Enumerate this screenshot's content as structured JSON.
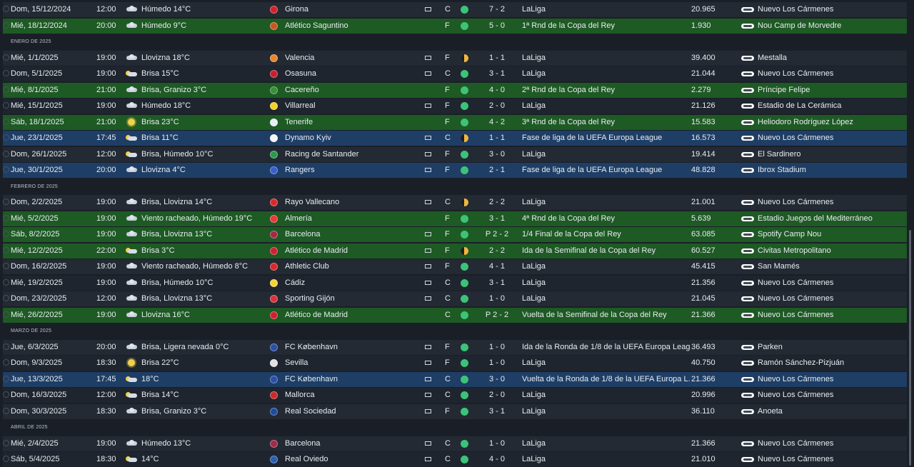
{
  "columns": {
    "result_icon": "result-dot",
    "tv_icon": "tv-icon",
    "stadium_icon": "stadium-icon"
  },
  "colors": {
    "cup_row": "#1e5a24",
    "europe_row": "#1e3e66",
    "normal_row": "#232a34",
    "win": "#3cc378",
    "draw": "#f2b53d"
  },
  "entries": [
    {
      "kind": "match",
      "date": "Dom, 15/12/2024",
      "time": "12:00",
      "wicon": "cloud",
      "weather": "Húmedo 14°C",
      "crest": "#d1232a",
      "opponent": "Girona",
      "tv": true,
      "ha": "C",
      "result": "W",
      "score": "7 - 2",
      "competition": "LaLiga",
      "attendance": "20.965",
      "stadium": "Nuevo Los Cármenes",
      "style": "normal"
    },
    {
      "kind": "match",
      "date": "Mié, 18/12/2024",
      "time": "20:00",
      "wicon": "cloud",
      "weather": "Húmedo 9°C",
      "crest": "#c8571f",
      "opponent": "Atlético Saguntino",
      "tv": false,
      "ha": "F",
      "result": "W",
      "score": "5 - 0",
      "competition": "1ª Rnd de la Copa del Rey",
      "attendance": "1.930",
      "stadium": "Nou Camp de Morvedre",
      "style": "cup"
    },
    {
      "kind": "month",
      "label": "ENERO DE 2025"
    },
    {
      "kind": "match",
      "date": "Mié, 1/1/2025",
      "time": "19:00",
      "wicon": "cloud",
      "weather": "Llovizna 18°C",
      "crest": "#e8852a",
      "opponent": "Valencia",
      "tv": true,
      "ha": "F",
      "result": "D",
      "score": "1 - 1",
      "competition": "LaLiga",
      "attendance": "39.400",
      "stadium": "Mestalla",
      "style": "normal"
    },
    {
      "kind": "match",
      "date": "Dom, 5/1/2025",
      "time": "19:00",
      "wicon": "suncloud",
      "weather": "Brisa 15°C",
      "crest": "#c4202f",
      "opponent": "Osasuna",
      "tv": true,
      "ha": "C",
      "result": "W",
      "score": "3 - 1",
      "competition": "LaLiga",
      "attendance": "21.044",
      "stadium": "Nuevo Los Cármenes",
      "style": "normal"
    },
    {
      "kind": "match",
      "date": "Mié, 8/1/2025",
      "time": "21:00",
      "wicon": "cloud",
      "weather": "Brisa, Granizo 3°C",
      "crest": "#3b8e3b",
      "opponent": "Cacereño",
      "tv": false,
      "ha": "F",
      "result": "W",
      "score": "4 - 0",
      "competition": "2ª Rnd de la Copa del Rey",
      "attendance": "2.279",
      "stadium": "Príncipe Felipe",
      "style": "cup"
    },
    {
      "kind": "match",
      "date": "Mié, 15/1/2025",
      "time": "19:00",
      "wicon": "cloud",
      "weather": "Húmedo 18°C",
      "crest": "#f2d028",
      "opponent": "Villarreal",
      "tv": true,
      "ha": "F",
      "result": "W",
      "score": "2 - 0",
      "competition": "LaLiga",
      "attendance": "21.126",
      "stadium": "Estadio de La Cerámica",
      "style": "normal"
    },
    {
      "kind": "match",
      "date": "Sáb, 18/1/2025",
      "time": "21:00",
      "wicon": "sun",
      "weather": "Brisa 23°C",
      "crest": "#e6eef5",
      "opponent": "Tenerife",
      "tv": false,
      "ha": "F",
      "result": "W",
      "score": "4 - 2",
      "competition": "3ª Rnd de la Copa del Rey",
      "attendance": "15.583",
      "stadium": "Heliodoro Rodríguez López",
      "style": "cup"
    },
    {
      "kind": "match",
      "date": "Jue, 23/1/2025",
      "time": "17:45",
      "wicon": "suncloud",
      "weather": "Brisa 11°C",
      "crest": "#f5f5f5",
      "opponent": "Dynamo Kyiv",
      "tv": true,
      "ha": "C",
      "result": "D",
      "score": "1 - 1",
      "competition": "Fase de liga de la UEFA Europa League",
      "attendance": "16.573",
      "stadium": "Nuevo Los Cármenes",
      "style": "euro"
    },
    {
      "kind": "match",
      "date": "Dom, 26/1/2025",
      "time": "12:00",
      "wicon": "suncloud",
      "weather": "Brisa, Húmedo 10°C",
      "crest": "#2a9a4a",
      "opponent": "Racing de Santander",
      "tv": true,
      "ha": "F",
      "result": "W",
      "score": "3 - 0",
      "competition": "LaLiga",
      "attendance": "19.414",
      "stadium": "El Sardinero",
      "style": "normal"
    },
    {
      "kind": "match",
      "date": "Jue, 30/1/2025",
      "time": "20:00",
      "wicon": "cloud",
      "weather": "Llovizna 4°C",
      "crest": "#3a5fcd",
      "opponent": "Rangers",
      "tv": true,
      "ha": "F",
      "result": "W",
      "score": "2 - 1",
      "competition": "Fase de liga de la UEFA Europa League",
      "attendance": "48.828",
      "stadium": "Ibrox Stadium",
      "style": "euro"
    },
    {
      "kind": "month",
      "label": "FEBRERO DE 2025"
    },
    {
      "kind": "match",
      "date": "Dom, 2/2/2025",
      "time": "19:00",
      "wicon": "cloud",
      "weather": "Brisa, Llovizna 14°C",
      "crest": "#d92a2a",
      "opponent": "Rayo Vallecano",
      "tv": true,
      "ha": "C",
      "result": "D",
      "score": "2 - 2",
      "competition": "LaLiga",
      "attendance": "21.001",
      "stadium": "Nuevo Los Cármenes",
      "style": "normal"
    },
    {
      "kind": "match",
      "date": "Mié, 5/2/2025",
      "time": "19:00",
      "wicon": "cloud",
      "weather": "Viento racheado, Húmedo 19°C",
      "crest": "#e73a3a",
      "opponent": "Almería",
      "tv": false,
      "ha": "F",
      "result": "W",
      "score": "3 - 1",
      "competition": "4ª Rnd de la Copa del Rey",
      "attendance": "5.639",
      "stadium": "Estadio Juegos del Mediterráneo",
      "style": "cup"
    },
    {
      "kind": "match",
      "date": "Sáb, 8/2/2025",
      "time": "19:00",
      "wicon": "cloud",
      "weather": "Brisa, Llovizna 13°C",
      "crest": "#a12a4a",
      "opponent": "Barcelona",
      "tv": true,
      "ha": "F",
      "result": "W",
      "score": "P 2 - 2",
      "competition": "1/4 Final de la Copa del Rey",
      "attendance": "63.085",
      "stadium": "Spotify Camp Nou",
      "style": "cup"
    },
    {
      "kind": "match",
      "date": "Mié, 12/2/2025",
      "time": "22:00",
      "wicon": "suncloud",
      "weather": "Brisa 3°C",
      "crest": "#cc2230",
      "opponent": "Atlético de Madrid",
      "tv": true,
      "ha": "F",
      "result": "D",
      "score": "2 - 2",
      "competition": "Ida de la Semifinal de la Copa del Rey",
      "attendance": "60.527",
      "stadium": "Civitas Metropolitano",
      "style": "cup"
    },
    {
      "kind": "match",
      "date": "Dom, 16/2/2025",
      "time": "19:00",
      "wicon": "cloud",
      "weather": "Viento racheado, Húmedo 8°C",
      "crest": "#d52a2a",
      "opponent": "Athletic Club",
      "tv": true,
      "ha": "F",
      "result": "W",
      "score": "4 - 1",
      "competition": "LaLiga",
      "attendance": "45.415",
      "stadium": "San Mamés",
      "style": "normal"
    },
    {
      "kind": "match",
      "date": "Mié, 19/2/2025",
      "time": "19:00",
      "wicon": "cloud",
      "weather": "Brisa, Húmedo 10°C",
      "crest": "#f4d33a",
      "opponent": "Cádiz",
      "tv": true,
      "ha": "C",
      "result": "W",
      "score": "3 - 1",
      "competition": "LaLiga",
      "attendance": "21.356",
      "stadium": "Nuevo Los Cármenes",
      "style": "normal"
    },
    {
      "kind": "match",
      "date": "Dom, 23/2/2025",
      "time": "12:00",
      "wicon": "cloud",
      "weather": "Brisa, Llovizna 13°C",
      "crest": "#d8333a",
      "opponent": "Sporting Gijón",
      "tv": true,
      "ha": "C",
      "result": "W",
      "score": "1 - 0",
      "competition": "LaLiga",
      "attendance": "21.045",
      "stadium": "Nuevo Los Cármenes",
      "style": "normal"
    },
    {
      "kind": "match",
      "date": "Mié, 26/2/2025",
      "time": "19:00",
      "wicon": "cloud",
      "weather": "Llovizna 16°C",
      "crest": "#cc2230",
      "opponent": "Atlético de Madrid",
      "tv": false,
      "ha": "C",
      "result": "W",
      "score": "P 2 - 2",
      "competition": "Vuelta de la Semifinal de la Copa del Rey",
      "attendance": "21.366",
      "stadium": "Nuevo Los Cármenes",
      "style": "cup"
    },
    {
      "kind": "month",
      "label": "MARZO DE 2025"
    },
    {
      "kind": "match",
      "date": "Jue, 6/3/2025",
      "time": "20:00",
      "wicon": "cloud",
      "weather": "Brisa, Ligera nevada 0°C",
      "crest": "#2a4fa8",
      "opponent": "FC København",
      "tv": true,
      "ha": "F",
      "result": "W",
      "score": "1 - 0",
      "competition": "Ida de la Ronda de 1/8 de la UEFA Europa Leag...",
      "attendance": "36.493",
      "stadium": "Parken",
      "style": "normal"
    },
    {
      "kind": "match",
      "date": "Dom, 9/3/2025",
      "time": "18:30",
      "wicon": "sun",
      "weather": "Brisa 22°C",
      "crest": "#e1e1e1",
      "opponent": "Sevilla",
      "tv": true,
      "ha": "F",
      "result": "W",
      "score": "1 - 0",
      "competition": "LaLiga",
      "attendance": "40.750",
      "stadium": "Ramón Sánchez-Pizjuán",
      "style": "normal"
    },
    {
      "kind": "match",
      "date": "Jue, 13/3/2025",
      "time": "17:45",
      "wicon": "suncloud",
      "weather": "18°C",
      "crest": "#2a4fa8",
      "opponent": "FC København",
      "tv": true,
      "ha": "C",
      "result": "W",
      "score": "3 - 0",
      "competition": "Vuelta de la Ronda de 1/8 de la UEFA Europa L...",
      "attendance": "21.366",
      "stadium": "Nuevo Los Cármenes",
      "style": "euro"
    },
    {
      "kind": "match",
      "date": "Dom, 16/3/2025",
      "time": "12:00",
      "wicon": "suncloud",
      "weather": "Brisa 14°C",
      "crest": "#c92a2a",
      "opponent": "Mallorca",
      "tv": true,
      "ha": "C",
      "result": "W",
      "score": "2 - 0",
      "competition": "LaLiga",
      "attendance": "20.996",
      "stadium": "Nuevo Los Cármenes",
      "style": "normal"
    },
    {
      "kind": "match",
      "date": "Dom, 30/3/2025",
      "time": "18:30",
      "wicon": "cloud",
      "weather": "Brisa, Granizo 3°C",
      "crest": "#1f4aa0",
      "opponent": "Real Sociedad",
      "tv": true,
      "ha": "F",
      "result": "W",
      "score": "3 - 1",
      "competition": "LaLiga",
      "attendance": "36.110",
      "stadium": "Anoeta",
      "style": "normal"
    },
    {
      "kind": "month",
      "label": "ABRIL DE 2025"
    },
    {
      "kind": "match",
      "date": "Mié, 2/4/2025",
      "time": "19:00",
      "wicon": "cloud",
      "weather": "Húmedo 13°C",
      "crest": "#a12a4a",
      "opponent": "Barcelona",
      "tv": true,
      "ha": "C",
      "result": "W",
      "score": "1 - 0",
      "competition": "LaLiga",
      "attendance": "21.366",
      "stadium": "Nuevo Los Cármenes",
      "style": "normal"
    },
    {
      "kind": "match",
      "date": "Sáb, 5/4/2025",
      "time": "18:30",
      "wicon": "suncloud",
      "weather": "14°C",
      "crest": "#2a5fb0",
      "opponent": "Real Oviedo",
      "tv": true,
      "ha": "C",
      "result": "W",
      "score": "4 - 0",
      "competition": "LaLiga",
      "attendance": "21.010",
      "stadium": "Nuevo Los Cármenes",
      "style": "normal"
    }
  ]
}
